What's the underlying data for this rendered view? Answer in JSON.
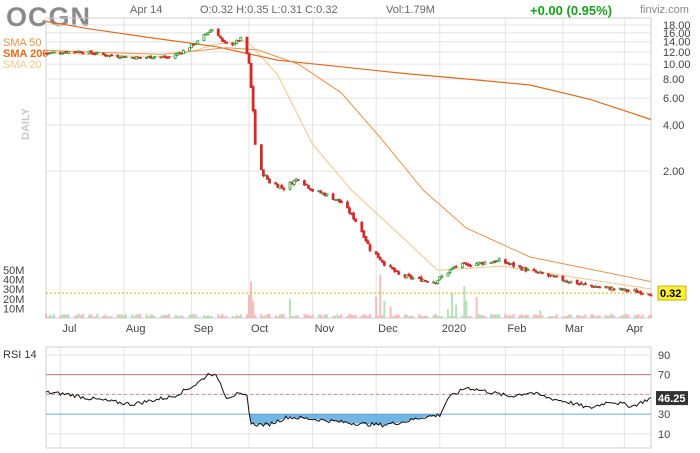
{
  "header": {
    "ticker": "OCGN",
    "date": "Apr 14",
    "ohlc": "O:0.32  H:0.35  L:0.31  C:0.32",
    "volume": "Vol:1.79M",
    "change": "+0.00 (0.95%)",
    "brand": "finviz.com"
  },
  "legend": [
    {
      "label": "SMA 50",
      "color": "#e8914a"
    },
    {
      "label": "SMA 200",
      "color": "#e5691a"
    },
    {
      "label": "SMA 20",
      "color": "#f3c48b"
    }
  ],
  "side_label": "DAILY",
  "rsi_title": "RSI 14",
  "colors": {
    "up": "#2d9a2d",
    "down": "#d42a2a",
    "grid": "#e3e3e3",
    "sma200": "#e5691a",
    "sma50": "#e8914a",
    "sma20": "#f3c48b",
    "rsi_fill": "#5aa9de"
  },
  "chart_data": [
    {
      "type": "candlestick",
      "title": "OCGN",
      "y_scale": "log",
      "y_ticks": [
        "18.00",
        "16.00",
        "14.00",
        "12.00",
        "10.00",
        "8.00",
        "6.00",
        "4.00",
        "2.00"
      ],
      "y_tick_values": [
        18,
        16,
        14,
        12,
        10,
        8,
        6,
        4,
        2
      ],
      "ylim": [
        0.22,
        20
      ],
      "x_ticks": [
        "Jul",
        "Aug",
        "Sep",
        "Oct",
        "Nov",
        "Dec",
        "2020",
        "Feb",
        "Mar",
        "Apr"
      ],
      "x_tick_dates": [
        "2019-07-01",
        "2019-08-01",
        "2019-09-03",
        "2019-10-01",
        "2019-11-01",
        "2019-12-02",
        "2020-01-02",
        "2020-02-03",
        "2020-03-02",
        "2020-04-01"
      ],
      "last_price": "0.32",
      "price_anchors": [
        [
          "2019-06-24",
          11.8
        ],
        [
          "2019-07-03",
          12.0
        ],
        [
          "2019-07-10",
          12.1
        ],
        [
          "2019-07-17",
          11.8
        ],
        [
          "2019-07-24",
          11.4
        ],
        [
          "2019-08-01",
          11.2
        ],
        [
          "2019-08-09",
          11.0
        ],
        [
          "2019-08-16",
          11.2
        ],
        [
          "2019-08-23",
          11.0
        ],
        [
          "2019-08-30",
          12.2
        ],
        [
          "2019-09-06",
          14.0
        ],
        [
          "2019-09-11",
          16.2
        ],
        [
          "2019-09-14",
          17.2
        ],
        [
          "2019-09-18",
          14.0
        ],
        [
          "2019-09-21",
          13.2
        ],
        [
          "2019-09-25",
          14.0
        ],
        [
          "2019-09-28",
          15.0
        ],
        [
          "2019-10-01",
          10.0
        ],
        [
          "2019-10-02",
          7.0
        ],
        [
          "2019-10-04",
          3.0
        ],
        [
          "2019-10-07",
          2.0
        ],
        [
          "2019-10-11",
          1.7
        ],
        [
          "2019-10-18",
          1.55
        ],
        [
          "2019-10-25",
          1.8
        ],
        [
          "2019-11-01",
          1.5
        ],
        [
          "2019-11-08",
          1.4
        ],
        [
          "2019-11-15",
          1.25
        ],
        [
          "2019-11-22",
          0.95
        ],
        [
          "2019-11-29",
          0.62
        ],
        [
          "2019-12-06",
          0.5
        ],
        [
          "2019-12-13",
          0.42
        ],
        [
          "2019-12-20",
          0.4
        ],
        [
          "2019-12-31",
          0.38
        ],
        [
          "2020-01-10",
          0.48
        ],
        [
          "2020-01-20",
          0.5
        ],
        [
          "2020-01-31",
          0.52
        ],
        [
          "2020-02-14",
          0.45
        ],
        [
          "2020-02-28",
          0.4
        ],
        [
          "2020-03-13",
          0.36
        ],
        [
          "2020-03-27",
          0.34
        ],
        [
          "2020-04-14",
          0.32
        ]
      ],
      "sma200": [
        [
          "2019-06-24",
          19.0
        ],
        [
          "2019-07-15",
          17.0
        ],
        [
          "2019-08-15",
          14.8
        ],
        [
          "2019-09-15",
          13.0
        ],
        [
          "2019-10-15",
          10.6
        ],
        [
          "2019-11-15",
          9.6
        ],
        [
          "2019-12-15",
          8.7
        ],
        [
          "2020-01-15",
          8.0
        ],
        [
          "2020-02-15",
          7.3
        ],
        [
          "2020-03-15",
          5.9
        ],
        [
          "2020-04-14",
          4.35
        ]
      ],
      "sma50": [
        [
          "2019-06-24",
          12.3
        ],
        [
          "2019-07-20",
          11.9
        ],
        [
          "2019-08-20",
          11.6
        ],
        [
          "2019-09-20",
          12.8
        ],
        [
          "2019-10-05",
          12.4
        ],
        [
          "2019-10-25",
          10.0
        ],
        [
          "2019-11-15",
          6.5
        ],
        [
          "2019-12-05",
          3.2
        ],
        [
          "2019-12-25",
          1.5
        ],
        [
          "2020-01-15",
          0.85
        ],
        [
          "2020-02-15",
          0.55
        ],
        [
          "2020-04-14",
          0.38
        ]
      ],
      "sma20": [
        [
          "2019-06-24",
          11.9
        ],
        [
          "2019-08-01",
          11.3
        ],
        [
          "2019-08-25",
          11.2
        ],
        [
          "2019-09-15",
          13.5
        ],
        [
          "2019-09-30",
          14.2
        ],
        [
          "2019-10-15",
          8.5
        ],
        [
          "2019-11-01",
          3.0
        ],
        [
          "2019-11-20",
          1.5
        ],
        [
          "2019-12-10",
          0.85
        ],
        [
          "2020-01-01",
          0.45
        ],
        [
          "2020-02-01",
          0.48
        ],
        [
          "2020-04-14",
          0.34
        ]
      ]
    },
    {
      "type": "bar",
      "title": "Volume",
      "y_ticks": [
        "50M",
        "40M",
        "30M",
        "20M",
        "10M"
      ],
      "y_tick_values": [
        50,
        40,
        30,
        20,
        10
      ],
      "spikes": [
        [
          "2019-10-01",
          24,
          "down"
        ],
        [
          "2019-10-02",
          38,
          "down"
        ],
        [
          "2019-10-03",
          18,
          "down"
        ],
        [
          "2019-10-21",
          20,
          "up"
        ],
        [
          "2019-12-02",
          22,
          "down"
        ],
        [
          "2019-12-04",
          45,
          "down"
        ],
        [
          "2019-12-06",
          18,
          "up"
        ],
        [
          "2019-12-09",
          12,
          "down"
        ],
        [
          "2020-01-06",
          9,
          "up"
        ],
        [
          "2020-01-08",
          26,
          "up"
        ],
        [
          "2020-01-10",
          14,
          "up"
        ],
        [
          "2020-01-14",
          33,
          "up"
        ],
        [
          "2020-01-15",
          18,
          "up"
        ],
        [
          "2020-01-20",
          22,
          "down"
        ],
        [
          "2020-02-20",
          8,
          "up"
        ]
      ]
    },
    {
      "type": "line",
      "title": "RSI 14",
      "y_ticks": [
        "90",
        "70",
        "50",
        "30",
        "10"
      ],
      "y_tick_values": [
        90,
        70,
        50,
        30,
        10
      ],
      "overbought": 70,
      "oversold": 30,
      "last_value": "46.25",
      "values": [
        [
          "2019-06-24",
          52
        ],
        [
          "2019-07-05",
          50
        ],
        [
          "2019-07-15",
          46
        ],
        [
          "2019-07-25",
          43
        ],
        [
          "2019-08-05",
          40
        ],
        [
          "2019-08-15",
          44
        ],
        [
          "2019-08-25",
          48
        ],
        [
          "2019-09-05",
          60
        ],
        [
          "2019-09-12",
          72
        ],
        [
          "2019-09-16",
          66
        ],
        [
          "2019-09-20",
          47
        ],
        [
          "2019-09-25",
          50
        ],
        [
          "2019-09-30",
          48
        ],
        [
          "2019-10-02",
          20
        ],
        [
          "2019-10-10",
          19
        ],
        [
          "2019-10-20",
          27
        ],
        [
          "2019-11-01",
          25
        ],
        [
          "2019-11-15",
          22
        ],
        [
          "2019-11-25",
          20
        ],
        [
          "2019-12-05",
          19
        ],
        [
          "2019-12-15",
          22
        ],
        [
          "2019-12-25",
          27
        ],
        [
          "2020-01-02",
          29
        ],
        [
          "2020-01-06",
          46
        ],
        [
          "2020-01-15",
          57
        ],
        [
          "2020-01-25",
          53
        ],
        [
          "2020-02-05",
          48
        ],
        [
          "2020-02-15",
          52
        ],
        [
          "2020-02-25",
          46
        ],
        [
          "2020-03-05",
          42
        ],
        [
          "2020-03-15",
          36
        ],
        [
          "2020-03-25",
          43
        ],
        [
          "2020-04-05",
          38
        ],
        [
          "2020-04-14",
          46.25
        ]
      ]
    }
  ]
}
